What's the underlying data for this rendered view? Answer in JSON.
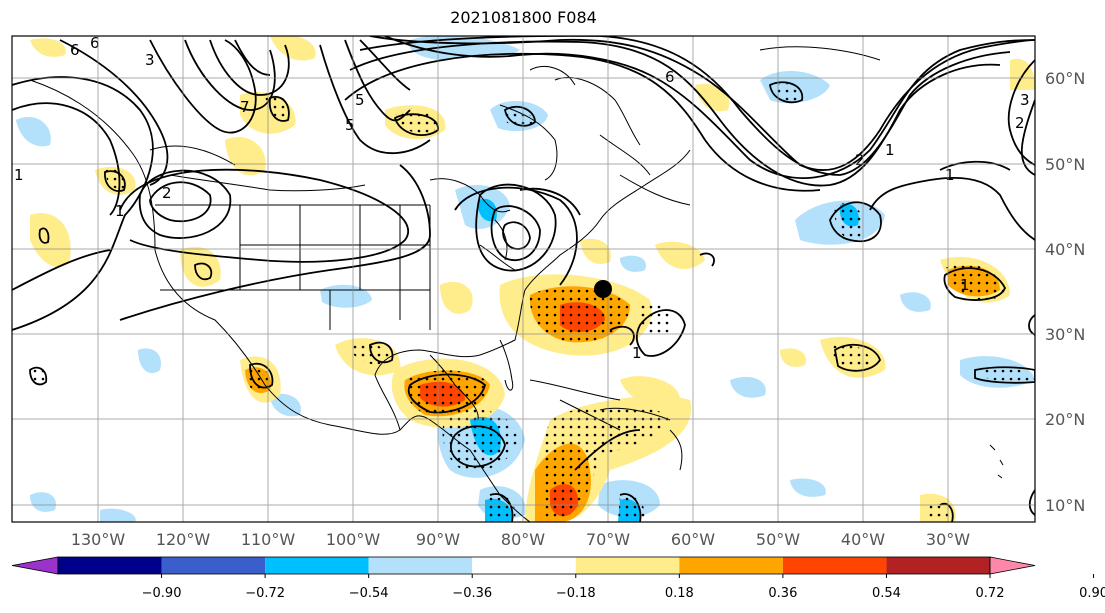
{
  "title": "2021081800 F084",
  "map": {
    "lon_labels": [
      "130°W",
      "120°W",
      "110°W",
      "100°W",
      "90°W",
      "80°W",
      "70°W",
      "60°W",
      "50°W",
      "40°W",
      "30°W"
    ],
    "lat_labels": [
      "60°N",
      "50°N",
      "40°N",
      "30°N",
      "20°N",
      "10°N"
    ],
    "contour_labels": [
      "6",
      "3",
      "6",
      "7",
      "5",
      "5",
      "6",
      "2",
      "1",
      "1",
      "2",
      "3",
      "1",
      "2",
      "1",
      "1",
      "1"
    ],
    "marker": "storm-center-dot"
  },
  "colorbar": {
    "ticks": [
      "−0.90",
      "−0.72",
      "−0.54",
      "−0.36",
      "−0.18",
      "0.18",
      "0.36",
      "0.54",
      "0.72",
      "0.90"
    ],
    "colors": [
      "#9933cc",
      "#00008b",
      "#3a5fcd",
      "#00bfff",
      "#b3e0fb",
      "#ffffff",
      "#ffec8b",
      "#ffa500",
      "#ff4500",
      "#b22222",
      "#ff88aa"
    ]
  }
}
